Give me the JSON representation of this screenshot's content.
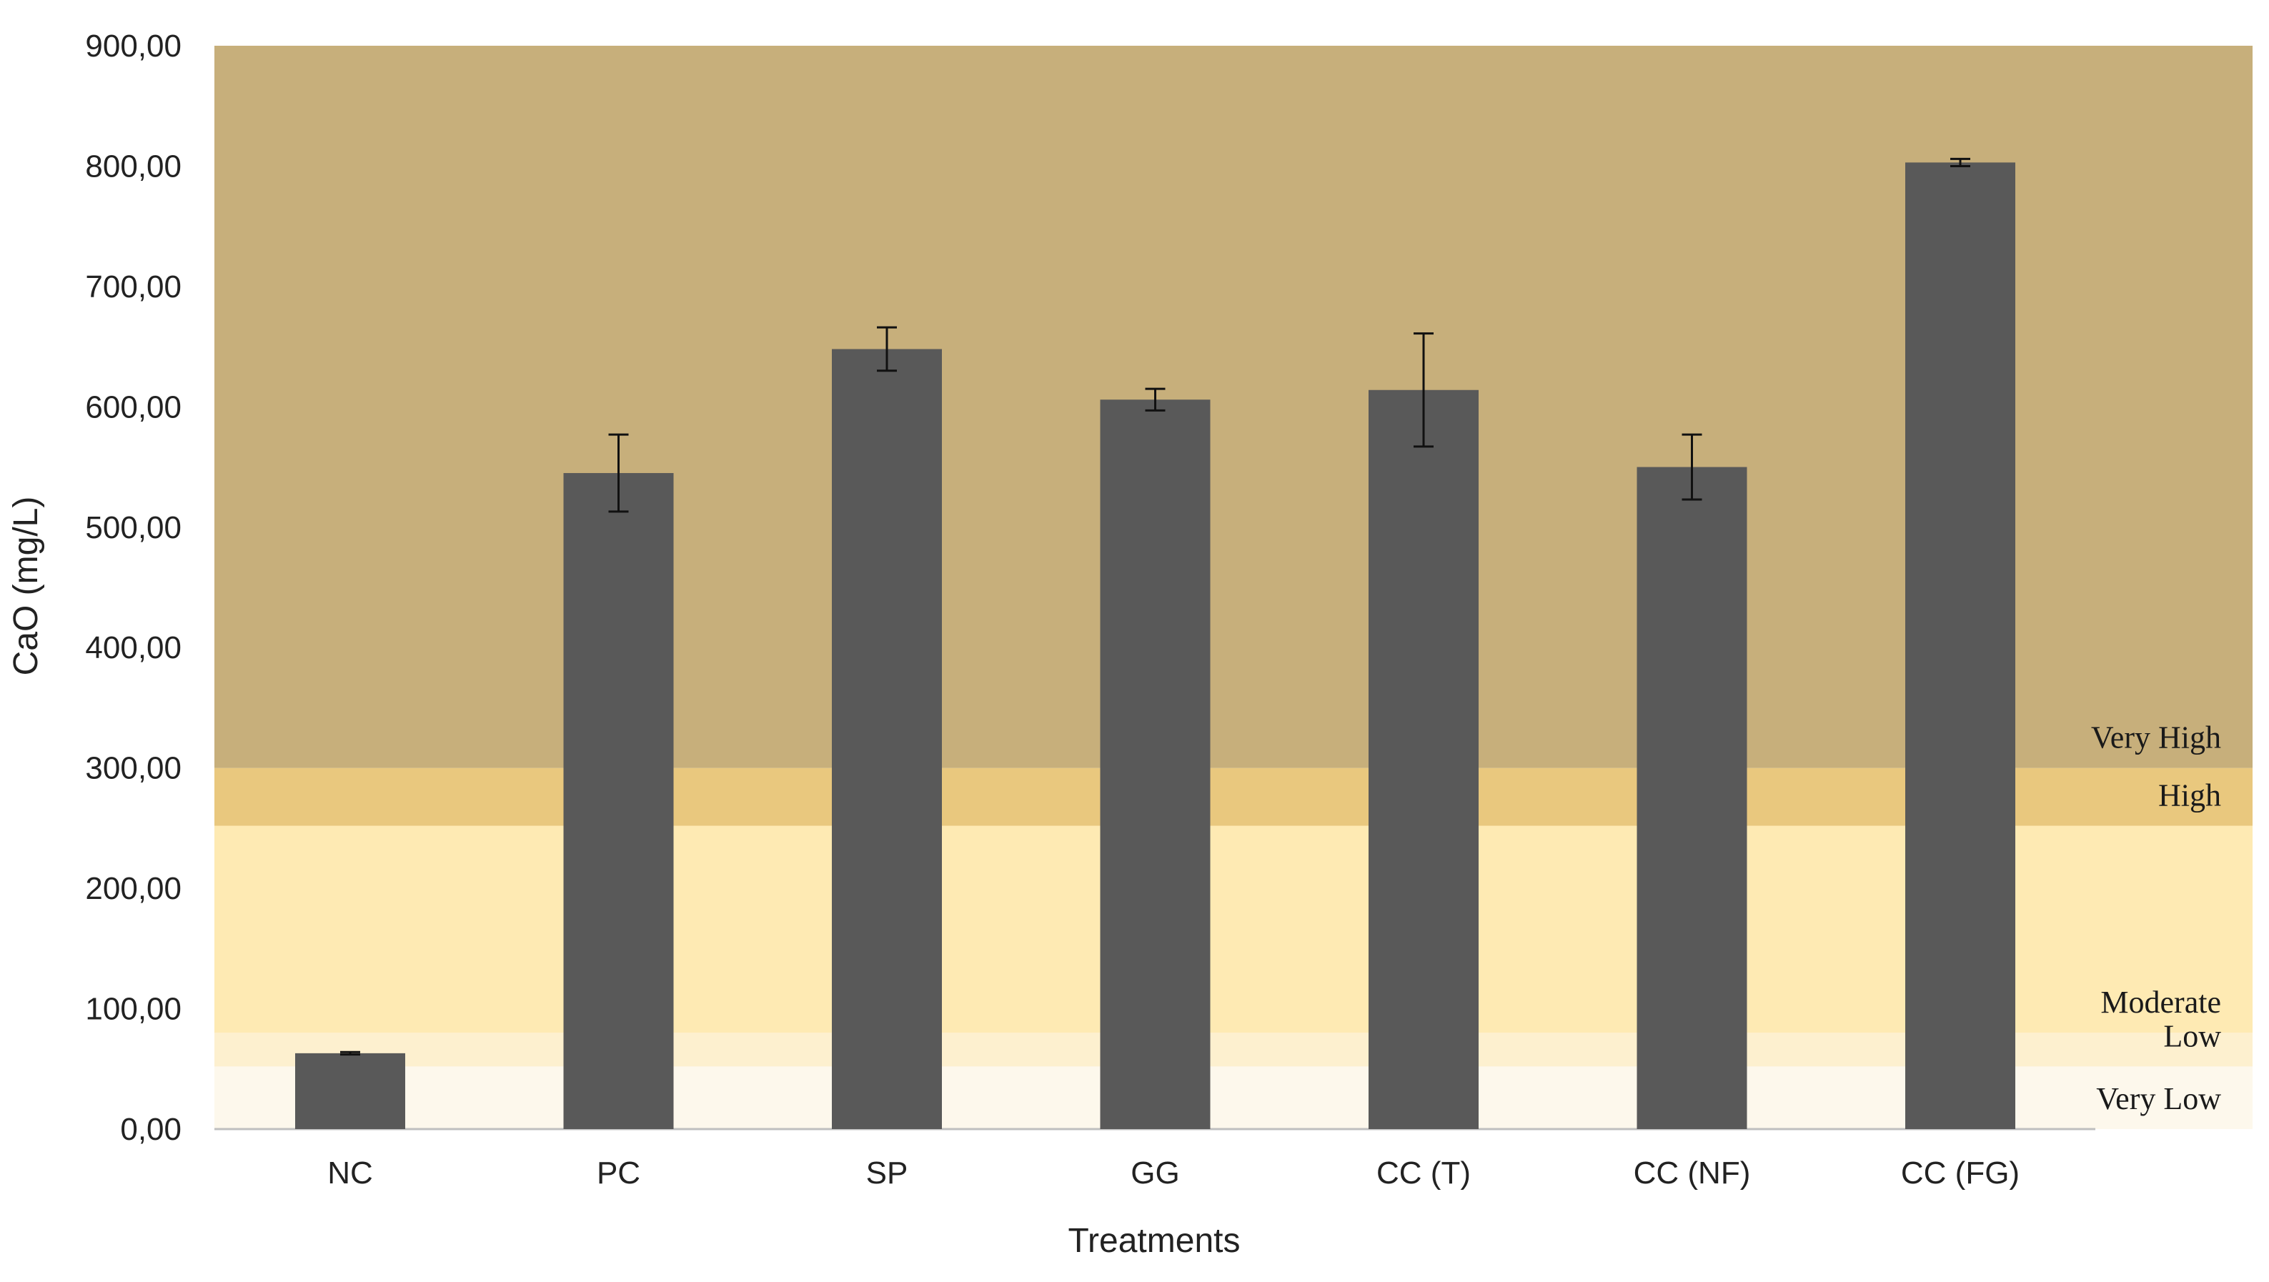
{
  "chart_data": {
    "type": "bar",
    "title": "",
    "xlabel": "Treatments",
    "ylabel": "CaO (mg/L)",
    "ylim": [
      0,
      900
    ],
    "yticks": [
      "0,00",
      "100,00",
      "200,00",
      "300,00",
      "400,00",
      "500,00",
      "600,00",
      "700,00",
      "800,00",
      "900,00"
    ],
    "categories": [
      "NC",
      "PC",
      "SP",
      "GG",
      "CC (T)",
      "CC (NF)",
      "CC (FG)"
    ],
    "values": [
      63,
      545,
      648,
      606,
      614,
      550,
      803
    ],
    "errors": [
      1,
      32,
      18,
      9,
      47,
      27,
      3
    ],
    "bar_color": "#595959",
    "bands": [
      {
        "label": "Very Low",
        "from": 0,
        "to": 52,
        "color": "#fdf8ec"
      },
      {
        "label": "Low",
        "from": 52,
        "to": 80,
        "color": "#fdf0cf"
      },
      {
        "label": "Moderate",
        "from": 80,
        "to": 252,
        "color": "#feeab3"
      },
      {
        "label": "High",
        "from": 252,
        "to": 300,
        "color": "#e9c87e"
      },
      {
        "label": "Very High",
        "from": 300,
        "to": 900,
        "color": "#c7af7b"
      }
    ],
    "grid": false,
    "legend": "none"
  }
}
